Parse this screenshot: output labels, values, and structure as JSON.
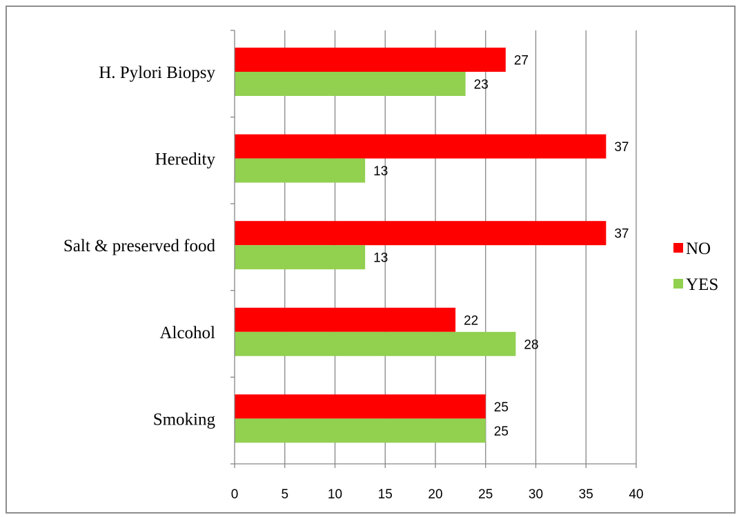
{
  "chart_data": {
    "type": "bar",
    "orientation": "horizontal",
    "categories": [
      "H. Pylori Biopsy",
      "Heredity",
      "Salt & preserved food",
      "Alcohol",
      "Smoking"
    ],
    "series": [
      {
        "name": "NO",
        "color": "#ff0000",
        "values": [
          27,
          37,
          37,
          22,
          25
        ]
      },
      {
        "name": "YES",
        "color": "#92d050",
        "values": [
          23,
          13,
          13,
          28,
          25
        ]
      }
    ],
    "xticks": [
      0,
      5,
      10,
      15,
      20,
      25,
      30,
      35,
      40
    ],
    "xlim": [
      0,
      40
    ],
    "grid": "vertical",
    "legend": "right",
    "title": "",
    "xlabel": "",
    "ylabel": ""
  }
}
